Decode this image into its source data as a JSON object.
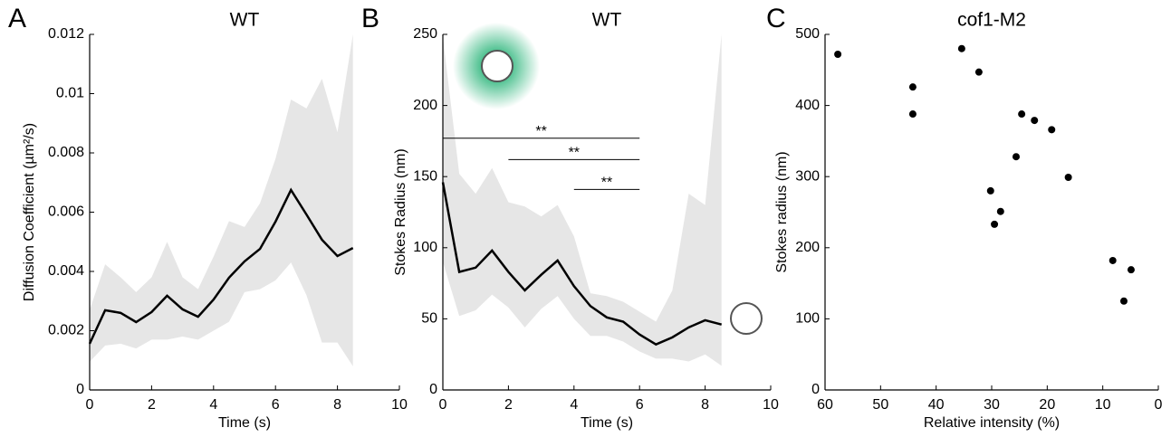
{
  "chart_data": [
    {
      "type": "line",
      "panel_label": "A",
      "title": "WT",
      "xlabel": "Time (s)",
      "ylabel": "Diffusion Coefficient (µm²/s)",
      "x": [
        0,
        0.5,
        1,
        1.5,
        2,
        2.5,
        3,
        3.5,
        4,
        4.5,
        5,
        5.5,
        6,
        6.5,
        7,
        7.5,
        8,
        8.5
      ],
      "values": [
        0.00156,
        0.00269,
        0.0026,
        0.00229,
        0.00263,
        0.00318,
        0.00272,
        0.00247,
        0.00305,
        0.00379,
        0.00434,
        0.00476,
        0.00568,
        0.00675,
        0.00592,
        0.00507,
        0.00452,
        0.00479
      ],
      "color": "#000000",
      "band": {
        "upper": [
          0.0027,
          0.00424,
          0.0038,
          0.0033,
          0.0038,
          0.005,
          0.0038,
          0.0034,
          0.0045,
          0.0057,
          0.0055,
          0.0063,
          0.0078,
          0.0098,
          0.0095,
          0.0105,
          0.0087,
          0.012
        ],
        "lower": [
          0.00095,
          0.0015,
          0.00156,
          0.0014,
          0.0017,
          0.0017,
          0.0018,
          0.0017,
          0.002,
          0.0023,
          0.0033,
          0.0034,
          0.0037,
          0.0043,
          0.0032,
          0.0016,
          0.0016,
          0.0008
        ],
        "color": "#e6e6e6"
      },
      "xlim": [
        0,
        10
      ],
      "xticks": [
        0,
        2,
        4,
        6,
        8,
        10
      ],
      "ylim": [
        0,
        0.012
      ],
      "yticks": [
        0,
        0.002,
        0.004,
        0.006,
        0.008,
        0.01,
        0.012
      ]
    },
    {
      "type": "line",
      "panel_label": "B",
      "title": "WT",
      "xlabel": "Time (s)",
      "ylabel": "Stokes Radius (nm)",
      "x": [
        0,
        0.5,
        1,
        1.5,
        2,
        2.5,
        3,
        3.5,
        4,
        4.5,
        5,
        5.5,
        6,
        6.5,
        7,
        7.5,
        8,
        8.5
      ],
      "values": [
        146,
        83,
        86,
        98,
        83,
        70,
        81,
        91,
        73,
        59,
        51,
        48,
        39,
        32,
        37,
        44,
        49,
        46
      ],
      "color": "#000000",
      "band": {
        "upper": [
          248,
          152,
          138,
          156,
          132,
          129,
          122,
          130,
          108,
          68,
          66,
          62,
          55,
          48,
          70,
          138,
          130,
          250
        ],
        "lower": [
          90,
          52,
          56,
          67,
          58,
          44,
          57,
          66,
          50,
          38,
          38,
          34,
          27,
          22,
          22,
          20,
          25,
          17
        ],
        "color": "#e6e6e6"
      },
      "annotations": [
        {
          "x": [
            0,
            6
          ],
          "y": 177,
          "label": "**"
        },
        {
          "x": [
            2,
            6
          ],
          "y": 162,
          "label": "**"
        },
        {
          "x": [
            4,
            6
          ],
          "y": 141,
          "label": "**"
        }
      ],
      "xlim": [
        0,
        10
      ],
      "xticks": [
        0,
        2,
        4,
        6,
        8,
        10
      ],
      "ylim": [
        0,
        250
      ],
      "yticks": [
        0,
        50,
        100,
        150,
        200,
        250
      ]
    },
    {
      "type": "scatter",
      "panel_label": "C",
      "title": "cof1-M2",
      "xlabel": "Relative intensity (%)",
      "ylabel": "Stokes radius (nm)",
      "x": [
        57.7,
        44.2,
        44.2,
        35.4,
        32.3,
        24.6,
        22.3,
        19.2,
        25.6,
        16.2,
        30.2,
        28.4,
        29.5,
        8.2,
        4.9,
        6.2
      ],
      "values": [
        472,
        426,
        388,
        480,
        447,
        388,
        379,
        366,
        328,
        299,
        280,
        251,
        233,
        182,
        169,
        125
      ],
      "color": "#000000",
      "xlim": [
        60,
        0
      ],
      "xticks": [
        60,
        50,
        40,
        30,
        20,
        10,
        0
      ],
      "ylim": [
        0,
        500
      ],
      "yticks": [
        0,
        100,
        200,
        300,
        400,
        500
      ]
    }
  ]
}
